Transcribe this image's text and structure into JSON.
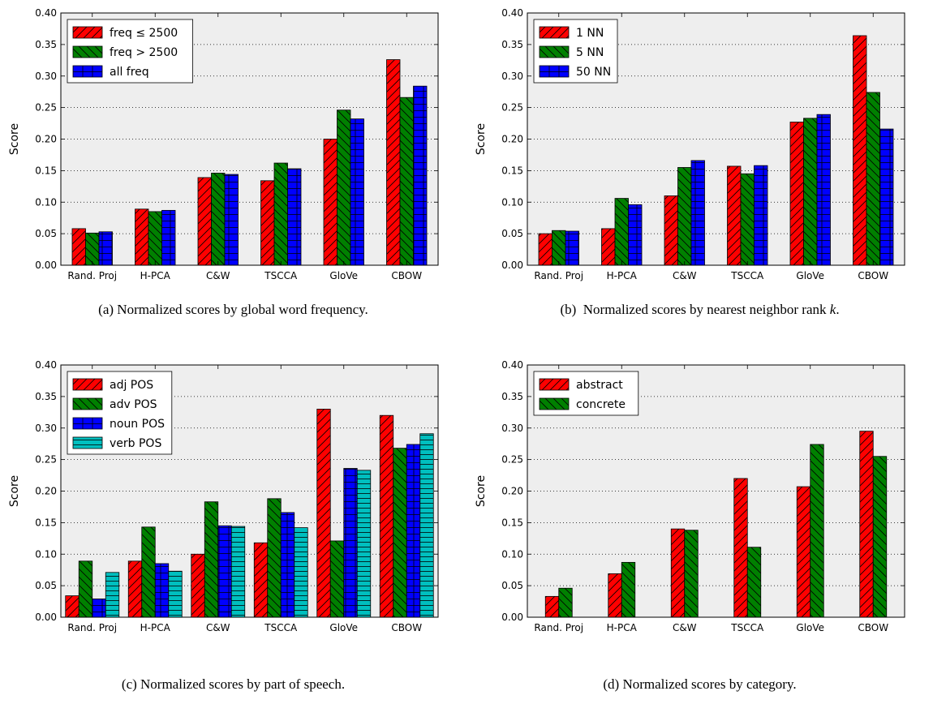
{
  "categories": [
    "Rand. Proj",
    "H-PCA",
    "C&W",
    "TSCCA",
    "GloVe",
    "CBOW"
  ],
  "ylabel": "Score",
  "yticks": [
    "0.00",
    "0.05",
    "0.10",
    "0.15",
    "0.20",
    "0.25",
    "0.30",
    "0.35",
    "0.40"
  ],
  "colors": {
    "red": "#ff0000",
    "green": "#008000",
    "blue": "#0000ff",
    "cyan": "#00bfbf",
    "plot_bg": "#eeeeee"
  },
  "chart_data": [
    {
      "type": "bar",
      "caption": "(a)  Normalized scores by global word frequency.",
      "categories": [
        "Rand. Proj",
        "H-PCA",
        "C&W",
        "TSCCA",
        "GloVe",
        "CBOW"
      ],
      "ylabel": "Score",
      "ylim": [
        0,
        0.4
      ],
      "grid": true,
      "legend_position": "top-left",
      "series": [
        {
          "name": "freq ≤ 2500",
          "color": "#ff0000",
          "hatch": "diag-up",
          "values": [
            0.058,
            0.089,
            0.139,
            0.134,
            0.2,
            0.326
          ]
        },
        {
          "name": "freq > 2500",
          "color": "#008000",
          "hatch": "diag-down",
          "values": [
            0.051,
            0.085,
            0.146,
            0.162,
            0.246,
            0.266
          ]
        },
        {
          "name": "all freq",
          "color": "#0000ff",
          "hatch": "grid",
          "values": [
            0.053,
            0.087,
            0.144,
            0.153,
            0.232,
            0.284
          ]
        }
      ]
    },
    {
      "type": "bar",
      "caption": "(b)  Normalized scores by nearest neighbor rank k.",
      "categories": [
        "Rand. Proj",
        "H-PCA",
        "C&W",
        "TSCCA",
        "GloVe",
        "CBOW"
      ],
      "ylabel": "Score",
      "ylim": [
        0,
        0.4
      ],
      "grid": true,
      "legend_position": "top-left",
      "series": [
        {
          "name": "1 NN",
          "color": "#ff0000",
          "hatch": "diag-up",
          "values": [
            0.05,
            0.058,
            0.11,
            0.157,
            0.227,
            0.364
          ]
        },
        {
          "name": "5 NN",
          "color": "#008000",
          "hatch": "diag-down",
          "values": [
            0.055,
            0.106,
            0.155,
            0.145,
            0.233,
            0.274
          ]
        },
        {
          "name": "50 NN",
          "color": "#0000ff",
          "hatch": "grid",
          "values": [
            0.054,
            0.096,
            0.166,
            0.158,
            0.239,
            0.216
          ]
        }
      ]
    },
    {
      "type": "bar",
      "caption": "(c)  Normalized scores by part of speech.",
      "categories": [
        "Rand. Proj",
        "H-PCA",
        "C&W",
        "TSCCA",
        "GloVe",
        "CBOW"
      ],
      "ylabel": "Score",
      "ylim": [
        0,
        0.4
      ],
      "grid": true,
      "legend_position": "top-left",
      "series": [
        {
          "name": "adj POS",
          "color": "#ff0000",
          "hatch": "diag-up",
          "values": [
            0.034,
            0.089,
            0.1,
            0.118,
            0.33,
            0.32
          ]
        },
        {
          "name": "adv POS",
          "color": "#008000",
          "hatch": "diag-down",
          "values": [
            0.089,
            0.143,
            0.183,
            0.188,
            0.121,
            0.268
          ]
        },
        {
          "name": "noun POS",
          "color": "#0000ff",
          "hatch": "grid",
          "values": [
            0.029,
            0.085,
            0.145,
            0.166,
            0.236,
            0.274
          ]
        },
        {
          "name": "verb POS",
          "color": "#00bfbf",
          "hatch": "horizontal",
          "values": [
            0.071,
            0.073,
            0.144,
            0.142,
            0.233,
            0.291
          ]
        }
      ]
    },
    {
      "type": "bar",
      "caption": "(d)  Normalized scores by category.",
      "categories": [
        "Rand. Proj",
        "H-PCA",
        "C&W",
        "TSCCA",
        "GloVe",
        "CBOW"
      ],
      "ylabel": "Score",
      "ylim": [
        0,
        0.4
      ],
      "grid": true,
      "legend_position": "top-left",
      "series": [
        {
          "name": "abstract",
          "color": "#ff0000",
          "hatch": "diag-up",
          "values": [
            0.033,
            0.069,
            0.14,
            0.22,
            0.207,
            0.295
          ]
        },
        {
          "name": "concrete",
          "color": "#008000",
          "hatch": "diag-down",
          "values": [
            0.046,
            0.087,
            0.138,
            0.111,
            0.274,
            0.255
          ]
        }
      ]
    }
  ]
}
